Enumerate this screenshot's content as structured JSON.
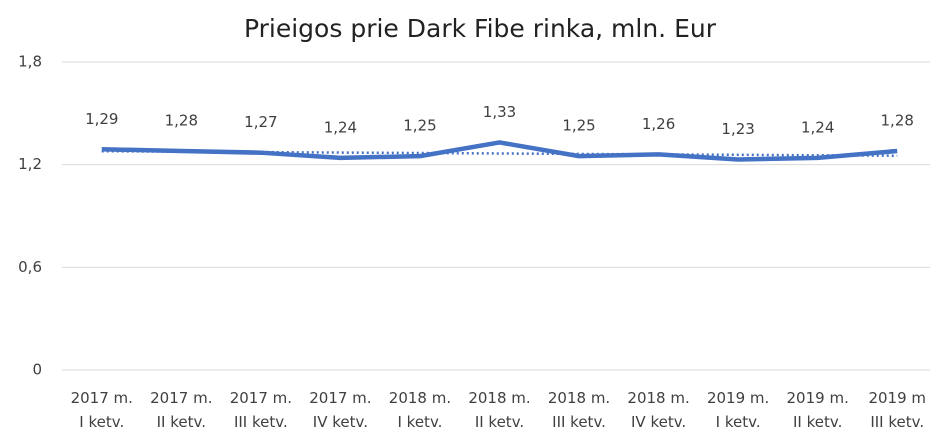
{
  "chart_data": {
    "type": "line",
    "title": "Prieigos prie Dark Fibe rinka, mln. Eur",
    "categories": [
      [
        "2017 m.",
        "I ketv."
      ],
      [
        "2017 m.",
        "II ketv."
      ],
      [
        "2017 m.",
        "III ketv."
      ],
      [
        "2017 m.",
        "IV ketv."
      ],
      [
        "2018 m.",
        "I ketv."
      ],
      [
        "2018 m.",
        "II ketv."
      ],
      [
        "2018 m.",
        "III ketv."
      ],
      [
        "2018 m.",
        "IV ketv."
      ],
      [
        "2019 m.",
        "I ketv."
      ],
      [
        "2019 m.",
        "II ketv."
      ],
      [
        "2019 m",
        "III ketv."
      ]
    ],
    "series": [
      {
        "color": "#4472c4",
        "values": [
          1.29,
          1.28,
          1.27,
          1.24,
          1.25,
          1.33,
          1.25,
          1.26,
          1.23,
          1.24,
          1.28
        ],
        "value_labels": [
          "1,29",
          "1,28",
          "1,27",
          "1,24",
          "1,25",
          "1,33",
          "1,25",
          "1,26",
          "1,23",
          "1,24",
          "1,28"
        ]
      }
    ],
    "ylim": [
      0,
      1.8
    ],
    "yticks": [
      0,
      {
        "value": 0.6,
        "label": "0,6"
      },
      {
        "value": 1.2,
        "label": "1,2"
      },
      {
        "value": 1.8,
        "label": "1,8"
      }
    ],
    "grid": true,
    "trendline": "linear"
  }
}
